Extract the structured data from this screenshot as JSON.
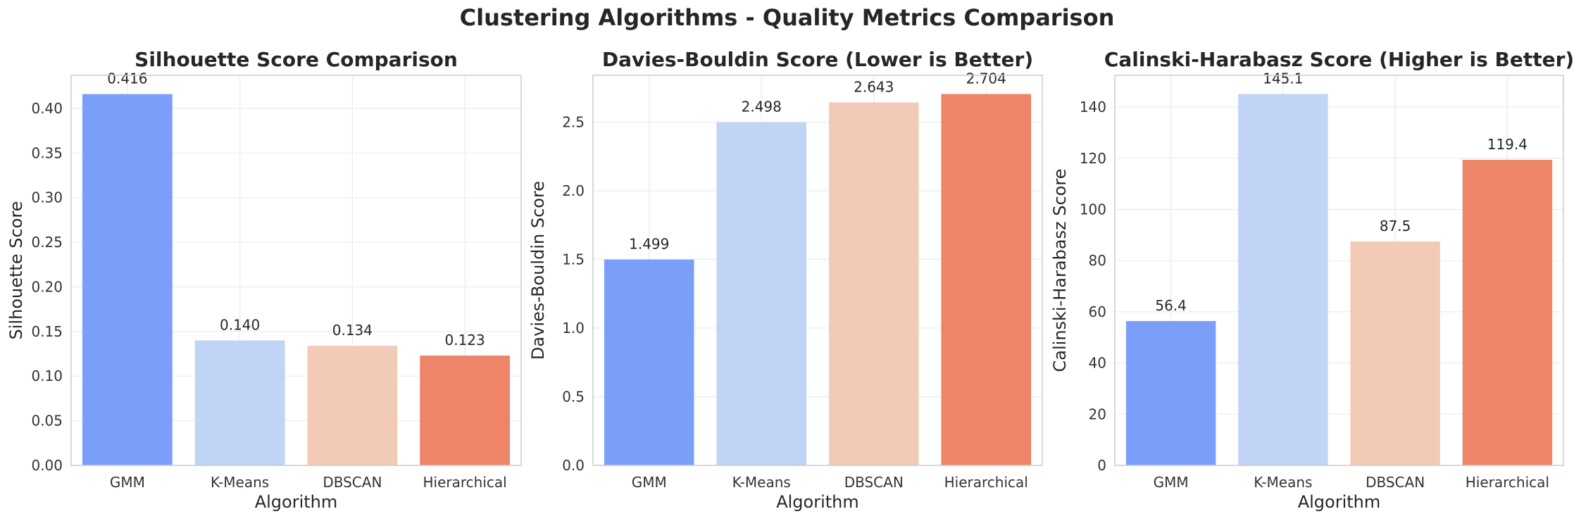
{
  "suptitle": "Clustering Algorithms - Quality Metrics Comparison",
  "colors": [
    "#7b9ff9",
    "#c0d4f5",
    "#f2cbb7",
    "#ee8468"
  ],
  "chart_data": [
    {
      "type": "bar",
      "title": "Silhouette Score Comparison",
      "xlabel": "Algorithm",
      "ylabel": "Silhouette Score",
      "categories": [
        "GMM",
        "K-Means",
        "DBSCAN",
        "Hierarchical"
      ],
      "values": [
        0.416,
        0.14,
        0.134,
        0.123
      ],
      "value_labels": [
        "0.416",
        "0.140",
        "0.134",
        "0.123"
      ],
      "ylim": [
        0,
        0.437
      ],
      "yticks": [
        0.0,
        0.05,
        0.1,
        0.15,
        0.2,
        0.25,
        0.3,
        0.35,
        0.4
      ],
      "ytick_labels": [
        "0.00",
        "0.05",
        "0.10",
        "0.15",
        "0.20",
        "0.25",
        "0.30",
        "0.35",
        "0.40"
      ],
      "grid": true
    },
    {
      "type": "bar",
      "title": "Davies-Bouldin Score (Lower is Better)",
      "xlabel": "Algorithm",
      "ylabel": "Davies-Bouldin Score",
      "categories": [
        "GMM",
        "K-Means",
        "DBSCAN",
        "Hierarchical"
      ],
      "values": [
        1.499,
        2.498,
        2.643,
        2.704
      ],
      "value_labels": [
        "1.499",
        "2.498",
        "2.643",
        "2.704"
      ],
      "ylim": [
        0,
        2.84
      ],
      "yticks": [
        0.0,
        0.5,
        1.0,
        1.5,
        2.0,
        2.5
      ],
      "ytick_labels": [
        "0.0",
        "0.5",
        "1.0",
        "1.5",
        "2.0",
        "2.5"
      ],
      "grid": true
    },
    {
      "type": "bar",
      "title": "Calinski-Harabasz Score (Higher is Better)",
      "xlabel": "Algorithm",
      "ylabel": "Calinski-Harabasz Score",
      "categories": [
        "GMM",
        "K-Means",
        "DBSCAN",
        "Hierarchical"
      ],
      "values": [
        56.4,
        145.1,
        87.5,
        119.4
      ],
      "value_labels": [
        "56.4",
        "145.1",
        "87.5",
        "119.4"
      ],
      "ylim": [
        0,
        152.4
      ],
      "yticks": [
        0,
        20,
        40,
        60,
        80,
        100,
        120,
        140
      ],
      "ytick_labels": [
        "0",
        "20",
        "40",
        "60",
        "80",
        "100",
        "120",
        "140"
      ],
      "grid": true
    }
  ]
}
